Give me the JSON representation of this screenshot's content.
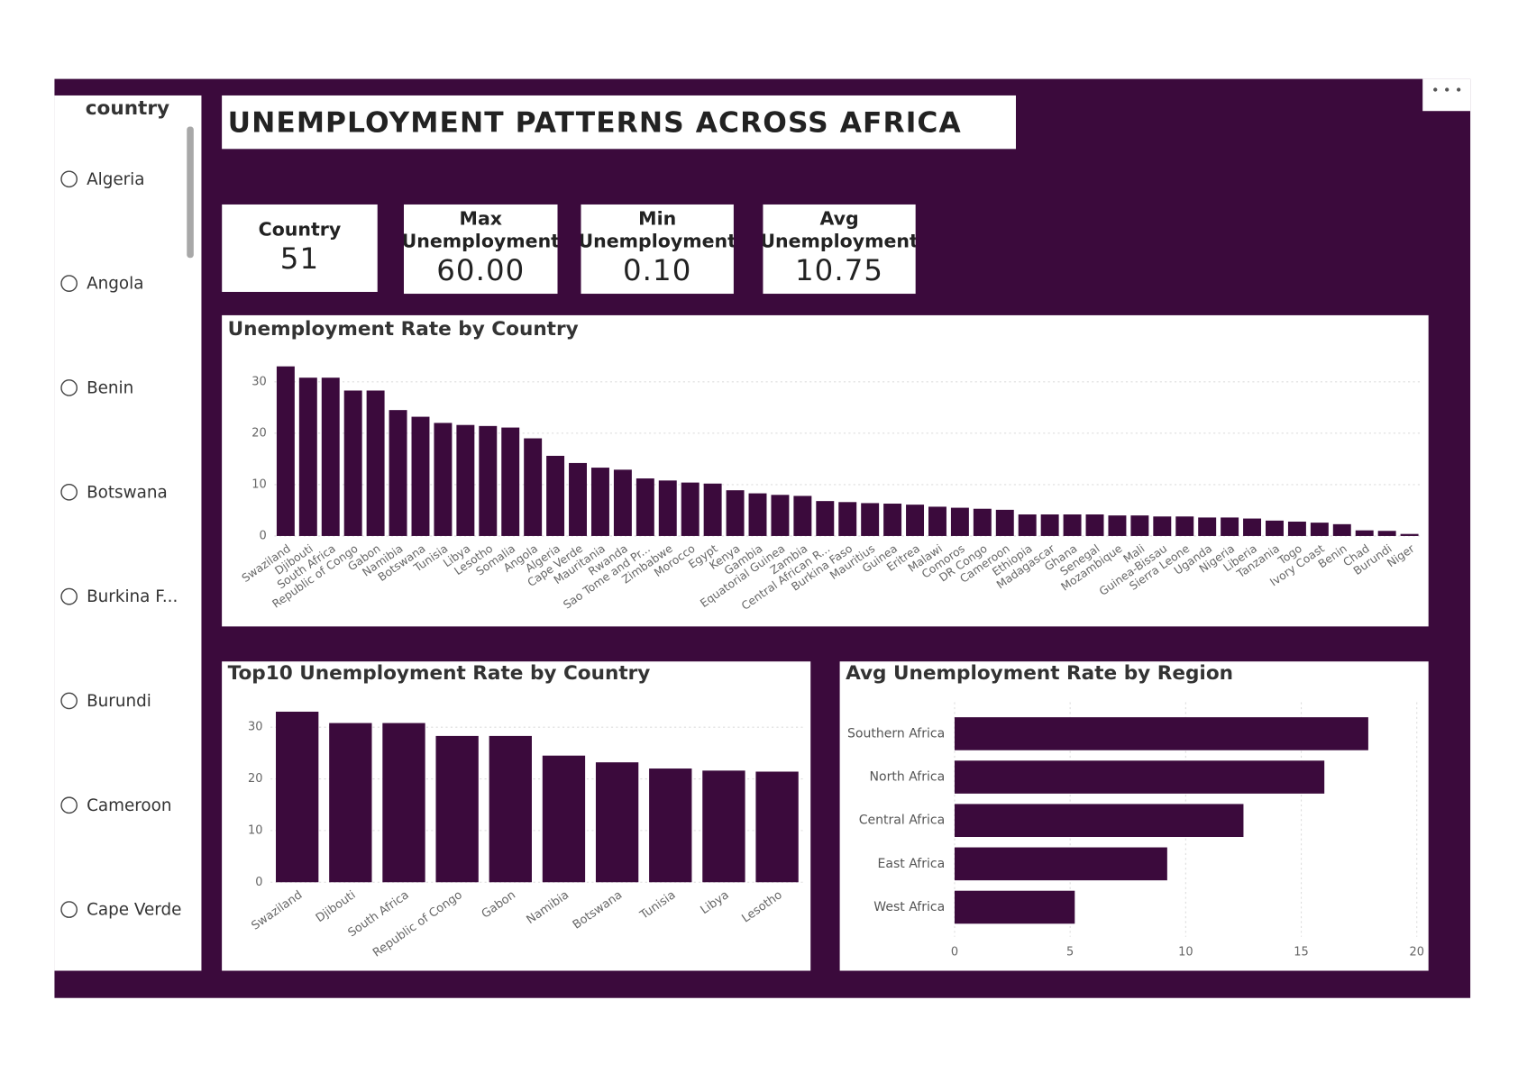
{
  "title": "UNEMPLOYMENT PATTERNS ACROSS AFRICA",
  "slicer": {
    "title": "country",
    "items": [
      "Algeria",
      "Angola",
      "Benin",
      "Botswana",
      "Burkina F...",
      "Burundi",
      "Cameroon",
      "Cape Verde"
    ]
  },
  "cards": [
    {
      "label": "Country",
      "value": "51"
    },
    {
      "label": "Max Unemployment",
      "value": "60.00"
    },
    {
      "label": "Min Unemployment",
      "value": "0.10"
    },
    {
      "label": "Avg Unemployment",
      "value": "10.75"
    }
  ],
  "chart_data": [
    {
      "type": "bar",
      "title": "Unemployment Rate by Country",
      "categories": [
        "Swaziland",
        "Djibouti",
        "South Africa",
        "Republic of Congo",
        "Gabon",
        "Namibia",
        "Botswana",
        "Tunisia",
        "Libya",
        "Lesotho",
        "Somalia",
        "Angola",
        "Algeria",
        "Cape Verde",
        "Mauritania",
        "Rwanda",
        "Sao Tome and Pr...",
        "Zimbabwe",
        "Morocco",
        "Egypt",
        "Kenya",
        "Gambia",
        "Equatorial Guinea",
        "Zambia",
        "Central African R...",
        "Burkina Faso",
        "Mauritius",
        "Guinea",
        "Eritrea",
        "Malawi",
        "Comoros",
        "DR Congo",
        "Cameroon",
        "Ethiopia",
        "Madagascar",
        "Ghana",
        "Senegal",
        "Mozambique",
        "Mali",
        "Guinea-Bissau",
        "Sierra Leone",
        "Uganda",
        "Nigeria",
        "Liberia",
        "Tanzania",
        "Togo",
        "Ivory Coast",
        "Benin",
        "Chad",
        "Burundi",
        "Niger"
      ],
      "values": [
        33.0,
        30.8,
        30.8,
        28.3,
        28.3,
        24.5,
        23.2,
        22.0,
        21.6,
        21.4,
        21.1,
        19.0,
        15.6,
        14.2,
        13.3,
        12.9,
        11.2,
        10.8,
        10.4,
        10.2,
        8.9,
        8.3,
        8.0,
        7.8,
        6.8,
        6.6,
        6.4,
        6.3,
        6.1,
        5.7,
        5.5,
        5.3,
        5.1,
        4.2,
        4.2,
        4.2,
        4.2,
        4.0,
        4.0,
        3.8,
        3.8,
        3.6,
        3.6,
        3.4,
        3.0,
        2.8,
        2.6,
        2.3,
        1.1,
        1.0,
        0.4
      ],
      "color": "#3b0a3c",
      "ylim": [
        0,
        35
      ],
      "yticks": [
        0,
        10,
        20,
        30
      ],
      "grid": true
    },
    {
      "type": "bar",
      "title": "Top10 Unemployment Rate by Country",
      "categories": [
        "Swaziland",
        "Djibouti",
        "South Africa",
        "Republic of Congo",
        "Gabon",
        "Namibia",
        "Botswana",
        "Tunisia",
        "Libya",
        "Lesotho"
      ],
      "values": [
        33.0,
        30.8,
        30.8,
        28.3,
        28.3,
        24.5,
        23.2,
        22.0,
        21.6,
        21.4
      ],
      "color": "#3b0a3c",
      "ylim": [
        0,
        35
      ],
      "yticks": [
        0,
        10,
        20,
        30
      ],
      "grid": true
    },
    {
      "type": "hbar",
      "title": "Avg Unemployment Rate by Region",
      "categories": [
        "Southern Africa",
        "North Africa",
        "Central Africa",
        "East Africa",
        "West Africa"
      ],
      "values": [
        17.9,
        16.0,
        12.5,
        9.2,
        5.2
      ],
      "color": "#3b0a3c",
      "xlim": [
        0,
        20
      ],
      "xticks": [
        0,
        5,
        10,
        15,
        20
      ],
      "grid": true
    }
  ]
}
